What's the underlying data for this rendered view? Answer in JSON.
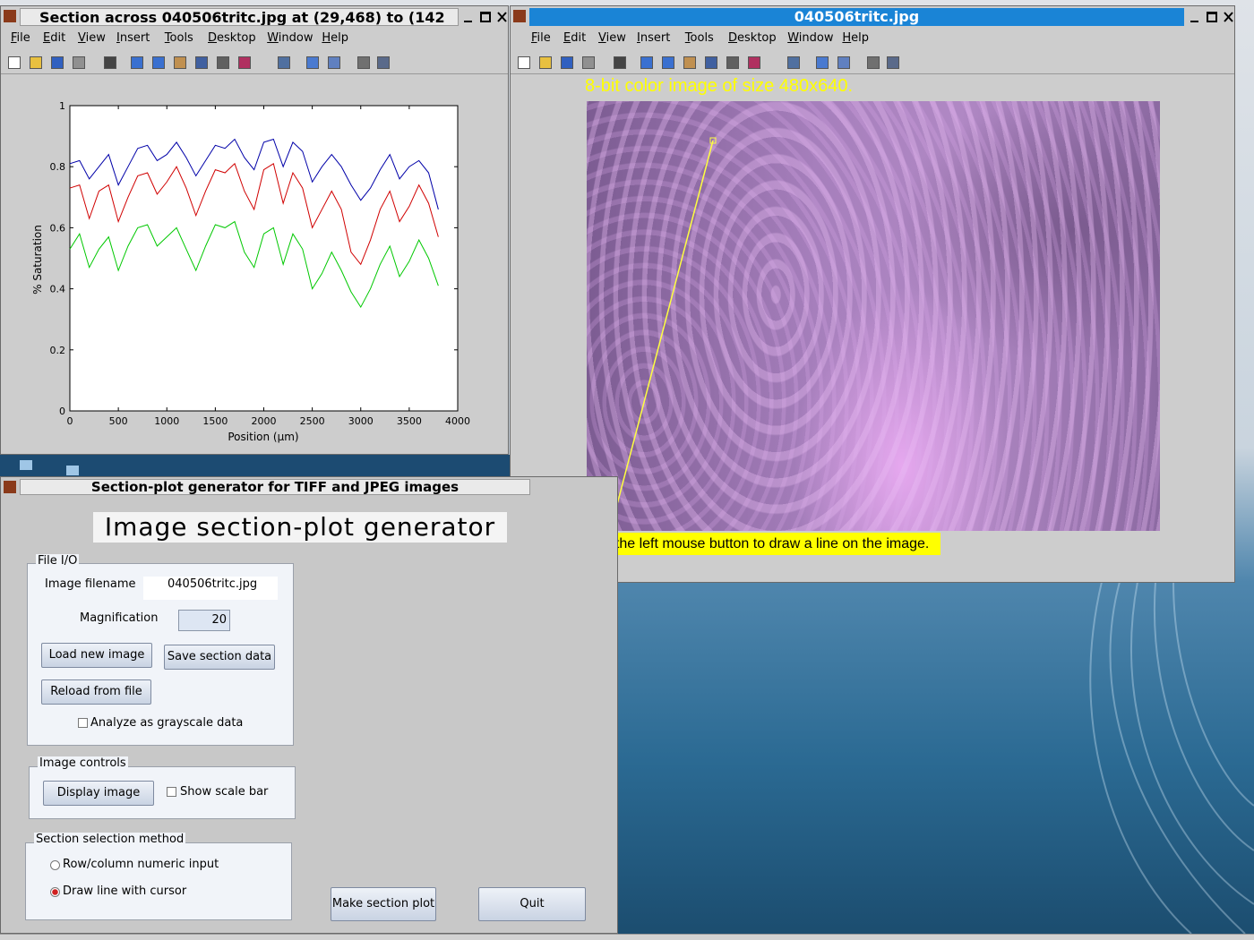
{
  "figure_window": {
    "title": "Section across 040506tritc.jpg at (29,468) to (142",
    "menu": [
      "File",
      "Edit",
      "View",
      "Insert",
      "Tools",
      "Desktop",
      "Window",
      "Help"
    ]
  },
  "image_window": {
    "title": "040506tritc.jpg",
    "menu": [
      "File",
      "Edit",
      "View",
      "Insert",
      "Tools",
      "Desktop",
      "Window",
      "Help"
    ],
    "caption": "8-bit color image of size 480x640.",
    "instruction": "Use the left mouse button to draw a line on the image."
  },
  "gui_window": {
    "title": "Section-plot generator for TIFF and JPEG images",
    "heading": "Image section-plot generator",
    "file_io": {
      "label": "File I/O",
      "filename_label": "Image filename",
      "filename": "040506tritc.jpg",
      "magnification_label": "Magnification",
      "magnification": 20,
      "load": "Load new image",
      "save": "Save section data",
      "reload": "Reload from file",
      "grayscale": "Analyze as grayscale data"
    },
    "image_controls": {
      "label": "Image controls",
      "display": "Display image",
      "scale_bar": "Show scale bar"
    },
    "section_method": {
      "label": "Section selection method",
      "row_col": "Row/column numeric input",
      "draw_line": "Draw line with cursor"
    },
    "make_plot": "Make section plot",
    "quit": "Quit"
  },
  "chart_data": {
    "type": "line",
    "xlabel": "Position (µm)",
    "ylabel": "% Saturation",
    "xlim": [
      0,
      4000
    ],
    "ylim": [
      0,
      1
    ],
    "xticks": [
      0,
      500,
      1000,
      1500,
      2000,
      2500,
      3000,
      3500,
      4000
    ],
    "yticks": [
      0,
      0.2,
      0.4,
      0.6,
      0.8,
      1
    ],
    "grid": false,
    "x": [
      0,
      100,
      200,
      300,
      400,
      500,
      600,
      700,
      800,
      900,
      1000,
      1100,
      1200,
      1300,
      1400,
      1500,
      1600,
      1700,
      1800,
      1900,
      2000,
      2100,
      2200,
      2300,
      2400,
      2500,
      2600,
      2700,
      2800,
      2900,
      3000,
      3100,
      3200,
      3300,
      3400,
      3500,
      3600,
      3700,
      3800
    ],
    "series": [
      {
        "color": "#0000a8",
        "values": [
          0.81,
          0.82,
          0.76,
          0.8,
          0.84,
          0.74,
          0.8,
          0.86,
          0.87,
          0.82,
          0.84,
          0.88,
          0.83,
          0.77,
          0.82,
          0.87,
          0.86,
          0.89,
          0.83,
          0.79,
          0.88,
          0.89,
          0.8,
          0.88,
          0.85,
          0.75,
          0.8,
          0.84,
          0.8,
          0.74,
          0.69,
          0.73,
          0.79,
          0.84,
          0.76,
          0.8,
          0.82,
          0.78,
          0.66
        ]
      },
      {
        "color": "#d00000",
        "values": [
          0.73,
          0.74,
          0.63,
          0.72,
          0.74,
          0.62,
          0.7,
          0.77,
          0.78,
          0.71,
          0.75,
          0.8,
          0.73,
          0.64,
          0.72,
          0.79,
          0.78,
          0.81,
          0.72,
          0.66,
          0.79,
          0.81,
          0.68,
          0.78,
          0.73,
          0.6,
          0.66,
          0.72,
          0.66,
          0.52,
          0.48,
          0.56,
          0.66,
          0.72,
          0.62,
          0.67,
          0.74,
          0.68,
          0.57
        ]
      },
      {
        "color": "#00c800",
        "values": [
          0.53,
          0.58,
          0.47,
          0.53,
          0.57,
          0.46,
          0.54,
          0.6,
          0.61,
          0.54,
          0.57,
          0.6,
          0.53,
          0.46,
          0.54,
          0.61,
          0.6,
          0.62,
          0.52,
          0.47,
          0.58,
          0.6,
          0.48,
          0.58,
          0.53,
          0.4,
          0.45,
          0.52,
          0.46,
          0.39,
          0.34,
          0.4,
          0.48,
          0.54,
          0.44,
          0.49,
          0.56,
          0.5,
          0.41
        ]
      }
    ]
  }
}
